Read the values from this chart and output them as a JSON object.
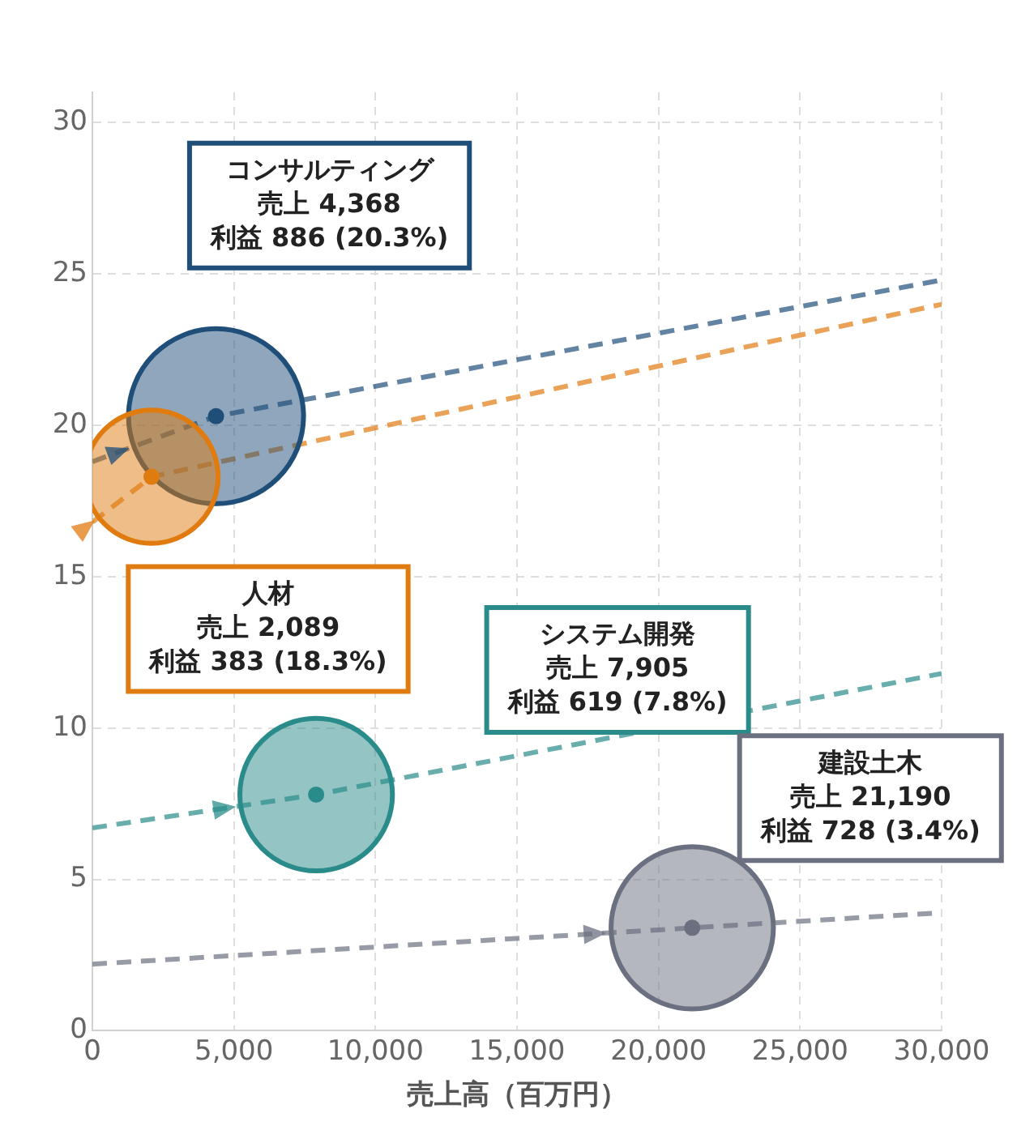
{
  "chart_data": {
    "type": "bubble",
    "xlabel": "売上高（百万円）",
    "x": [
      4368,
      2089,
      7905,
      21190
    ],
    "series": [
      {
        "values": [
          20.3,
          18.3,
          7.8,
          3.4
        ],
        "sizes": [
          1,
          0.58,
          0.76,
          0.86
        ],
        "colors": [
          "#1f4e79",
          "#e07b10",
          "#2a8c8a",
          "#6b7080"
        ]
      },
      {
        "type": "line",
        "x": [
          0,
          4368,
          30000
        ],
        "values": [
          18.8,
          20.3,
          24.8
        ],
        "color": "#1f4e79",
        "marker": "none",
        "line_style": "dashed"
      },
      {
        "type": "line",
        "x": [
          0,
          2089,
          30000
        ],
        "values": [
          16.8,
          18.3,
          24
        ],
        "color": "#e07b10",
        "marker": "none",
        "line_style": "dashed"
      },
      {
        "type": "line",
        "x": [
          0,
          7905,
          30000
        ],
        "values": [
          6.7,
          7.8,
          11.8
        ],
        "color": "#2a8c8a",
        "marker": "none",
        "line_style": "dashed"
      },
      {
        "type": "line",
        "x": [
          0,
          21190,
          30000
        ],
        "values": [
          2.2,
          3.4,
          3.9
        ],
        "color": "#6b7080",
        "marker": "none",
        "line_style": "dashed"
      }
    ],
    "xlim": [
      0,
      30000
    ],
    "xticks": [
      0,
      {
        "value": 5000,
        "label": "5,000"
      },
      {
        "value": 10000,
        "label": "10,000"
      },
      {
        "value": 15000,
        "label": "15,000"
      },
      {
        "value": 20000,
        "label": "20,000"
      },
      {
        "value": 25000,
        "label": "25,000"
      },
      {
        "value": 30000,
        "label": "30,000"
      }
    ],
    "ylim": [
      0,
      31
    ],
    "yticks": [
      0,
      5,
      10,
      15,
      20,
      25,
      30
    ],
    "grid": true,
    "legend": false,
    "marker": "circle",
    "annotations": [
      "コンサルティング",
      "売上 4,368",
      "利益 886 (20.3%)",
      "人材",
      "売上 2,089",
      "利益 383 (18.3%)",
      "システム開発",
      "売上 7,905",
      "利益 619 (7.8%)",
      "建設土木",
      "売上 21,190",
      "利益 728 (3.4%)"
    ]
  }
}
